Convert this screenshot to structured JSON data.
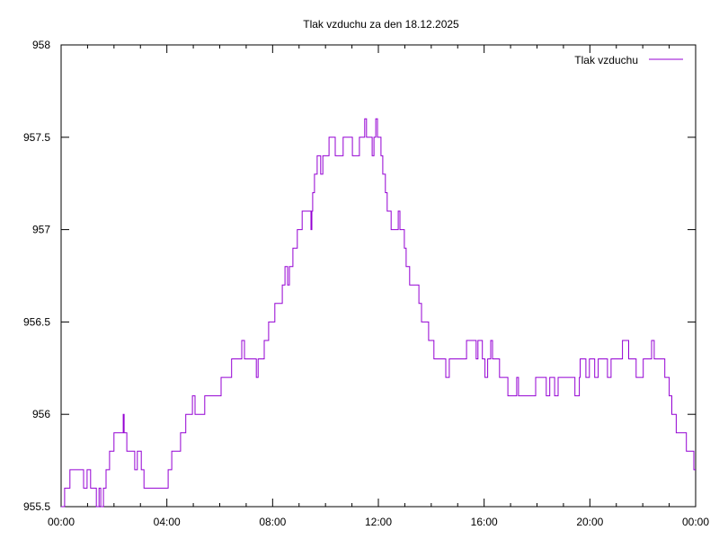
{
  "chart_data": {
    "type": "line",
    "style": "steps",
    "title": "Tlak vzduchu za den 18.12.2025",
    "xlabel": "",
    "ylabel": "",
    "xlim": [
      "00:00",
      "24:00"
    ],
    "ylim": [
      955.5,
      958
    ],
    "x_ticks": [
      "00:00",
      "04:00",
      "08:00",
      "12:00",
      "16:00",
      "20:00",
      "00:00"
    ],
    "y_ticks": [
      "955.5",
      "956",
      "956.5",
      "957",
      "957.5",
      "958"
    ],
    "grid": false,
    "legend_position": "top-right",
    "series": [
      {
        "name": "Tlak vzduchu",
        "color": "#9400d3",
        "points": [
          [
            "00:00",
            955.5
          ],
          [
            "00:08",
            955.6
          ],
          [
            "00:20",
            955.7
          ],
          [
            "00:51",
            955.6
          ],
          [
            "00:59",
            955.7
          ],
          [
            "01:07",
            955.6
          ],
          [
            "01:20",
            955.5
          ],
          [
            "01:26",
            955.6
          ],
          [
            "01:30",
            955.5
          ],
          [
            "01:36",
            955.6
          ],
          [
            "01:42",
            955.7
          ],
          [
            "01:50",
            955.8
          ],
          [
            "02:00",
            955.9
          ],
          [
            "02:21",
            956.0
          ],
          [
            "02:23",
            955.9
          ],
          [
            "02:29",
            955.8
          ],
          [
            "02:47",
            955.7
          ],
          [
            "02:53",
            955.8
          ],
          [
            "03:02",
            955.7
          ],
          [
            "03:08",
            955.6
          ],
          [
            "04:03",
            955.7
          ],
          [
            "04:11",
            955.8
          ],
          [
            "04:31",
            955.9
          ],
          [
            "04:43",
            956.0
          ],
          [
            "04:58",
            956.1
          ],
          [
            "05:04",
            956.0
          ],
          [
            "05:26",
            956.1
          ],
          [
            "06:03",
            956.2
          ],
          [
            "06:27",
            956.3
          ],
          [
            "06:50",
            956.4
          ],
          [
            "06:56",
            956.3
          ],
          [
            "07:23",
            956.2
          ],
          [
            "07:27",
            956.3
          ],
          [
            "07:41",
            956.4
          ],
          [
            "07:51",
            956.5
          ],
          [
            "08:05",
            956.6
          ],
          [
            "08:22",
            956.7
          ],
          [
            "08:28",
            956.8
          ],
          [
            "08:34",
            956.7
          ],
          [
            "08:38",
            956.8
          ],
          [
            "08:46",
            956.9
          ],
          [
            "08:56",
            957.0
          ],
          [
            "09:07",
            957.1
          ],
          [
            "09:27",
            957.0
          ],
          [
            "09:29",
            957.1
          ],
          [
            "09:31",
            957.2
          ],
          [
            "09:35",
            957.3
          ],
          [
            "09:41",
            957.4
          ],
          [
            "09:49",
            957.3
          ],
          [
            "09:54",
            957.4
          ],
          [
            "10:08",
            957.5
          ],
          [
            "10:22",
            957.4
          ],
          [
            "10:40",
            957.5
          ],
          [
            "11:01",
            957.4
          ],
          [
            "11:17",
            957.5
          ],
          [
            "11:29",
            957.6
          ],
          [
            "11:33",
            957.5
          ],
          [
            "11:46",
            957.4
          ],
          [
            "11:50",
            957.5
          ],
          [
            "11:54",
            957.6
          ],
          [
            "11:58",
            957.5
          ],
          [
            "12:06",
            957.4
          ],
          [
            "12:10",
            957.3
          ],
          [
            "12:16",
            957.2
          ],
          [
            "12:20",
            957.1
          ],
          [
            "12:29",
            957.0
          ],
          [
            "12:45",
            957.1
          ],
          [
            "12:49",
            957.0
          ],
          [
            "12:59",
            956.9
          ],
          [
            "13:03",
            956.8
          ],
          [
            "13:11",
            956.7
          ],
          [
            "13:32",
            956.6
          ],
          [
            "13:38",
            956.5
          ],
          [
            "13:54",
            956.4
          ],
          [
            "14:06",
            956.3
          ],
          [
            "14:33",
            956.2
          ],
          [
            "14:41",
            956.3
          ],
          [
            "15:20",
            956.4
          ],
          [
            "15:42",
            956.3
          ],
          [
            "15:46",
            956.4
          ],
          [
            "15:56",
            956.3
          ],
          [
            "16:02",
            956.2
          ],
          [
            "16:08",
            956.3
          ],
          [
            "16:15",
            956.4
          ],
          [
            "16:19",
            956.3
          ],
          [
            "16:35",
            956.2
          ],
          [
            "16:54",
            956.1
          ],
          [
            "17:14",
            956.2
          ],
          [
            "17:18",
            956.1
          ],
          [
            "17:57",
            956.2
          ],
          [
            "18:21",
            956.1
          ],
          [
            "18:29",
            956.2
          ],
          [
            "18:40",
            956.1
          ],
          [
            "18:48",
            956.2
          ],
          [
            "19:26",
            956.1
          ],
          [
            "19:36",
            956.2
          ],
          [
            "19:38",
            956.3
          ],
          [
            "19:51",
            956.2
          ],
          [
            "19:59",
            956.3
          ],
          [
            "20:11",
            956.2
          ],
          [
            "20:19",
            956.3
          ],
          [
            "20:40",
            956.2
          ],
          [
            "20:48",
            956.3
          ],
          [
            "21:14",
            956.4
          ],
          [
            "21:28",
            956.3
          ],
          [
            "21:45",
            956.2
          ],
          [
            "22:01",
            956.3
          ],
          [
            "22:20",
            956.4
          ],
          [
            "22:26",
            956.3
          ],
          [
            "22:50",
            956.2
          ],
          [
            "23:00",
            956.1
          ],
          [
            "23:06",
            956.0
          ],
          [
            "23:16",
            955.9
          ],
          [
            "23:39",
            955.8
          ],
          [
            "23:56",
            955.7
          ],
          [
            "24:00",
            955.7
          ]
        ]
      }
    ]
  }
}
